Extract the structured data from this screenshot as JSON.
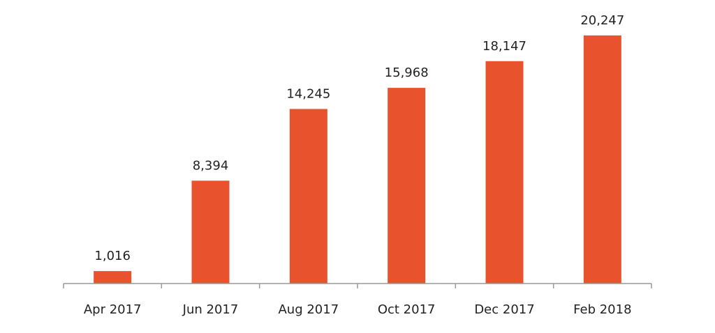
{
  "chart_data": {
    "type": "bar",
    "categories": [
      "Apr 2017",
      "Jun 2017",
      "Aug 2017",
      "Oct 2017",
      "Dec 2017",
      "Feb 2018"
    ],
    "series": [
      {
        "values": [
          1016,
          8394,
          14245,
          15968,
          18147,
          20247
        ],
        "data_labels": [
          "1,016",
          "8,394",
          "14,245",
          "15,968",
          "18,147",
          "20,247"
        ],
        "color": "#E8522D"
      }
    ],
    "ylim": [
      0,
      22000
    ],
    "axis_color": "#999999",
    "grid": false,
    "legend": "none"
  }
}
